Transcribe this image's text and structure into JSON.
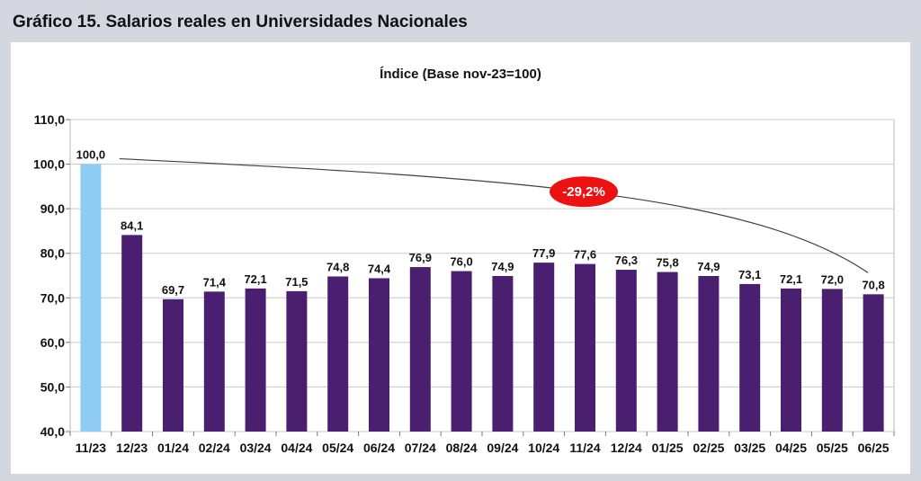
{
  "header": {
    "title": "Gráfico 15. Salarios reales en Universidades Nacionales"
  },
  "chart_data": {
    "type": "bar",
    "title": "Gráfico 15. Salarios reales en Universidades Nacionales",
    "subtitle": "Índice (Base nov-23=100)",
    "categories": [
      "11/23",
      "12/23",
      "01/24",
      "02/24",
      "03/24",
      "04/24",
      "05/24",
      "06/24",
      "07/24",
      "08/24",
      "09/24",
      "10/24",
      "11/24",
      "12/24",
      "01/25",
      "02/25",
      "03/25",
      "04/25",
      "05/25",
      "06/25"
    ],
    "values": [
      100.0,
      84.1,
      69.7,
      71.4,
      72.1,
      71.5,
      74.8,
      74.4,
      76.9,
      76.0,
      74.9,
      77.9,
      77.6,
      76.3,
      75.8,
      74.9,
      73.1,
      72.1,
      72.0,
      70.8
    ],
    "value_labels": [
      "100,0",
      "84,1",
      "69,7",
      "71,4",
      "72,1",
      "71,5",
      "74,8",
      "74,4",
      "76,9",
      "76,0",
      "74,9",
      "77,9",
      "77,6",
      "76,3",
      "75,8",
      "74,9",
      "73,1",
      "72,1",
      "72,0",
      "70,8"
    ],
    "ylim": [
      40,
      110
    ],
    "yticks": [
      40,
      50,
      60,
      70,
      80,
      90,
      100,
      110
    ],
    "ytick_labels": [
      "40,0",
      "50,0",
      "60,0",
      "70,0",
      "80,0",
      "90,0",
      "100,0",
      "110,0"
    ],
    "grid": true,
    "colors": {
      "first_bar": "#8ecbf5",
      "bars": "#4b1f6f",
      "annotation": "#ee1111",
      "trend_line": "#404040"
    },
    "annotation": {
      "text": "-29,2%",
      "from_category": "11/23",
      "to_category": "06/25"
    }
  }
}
